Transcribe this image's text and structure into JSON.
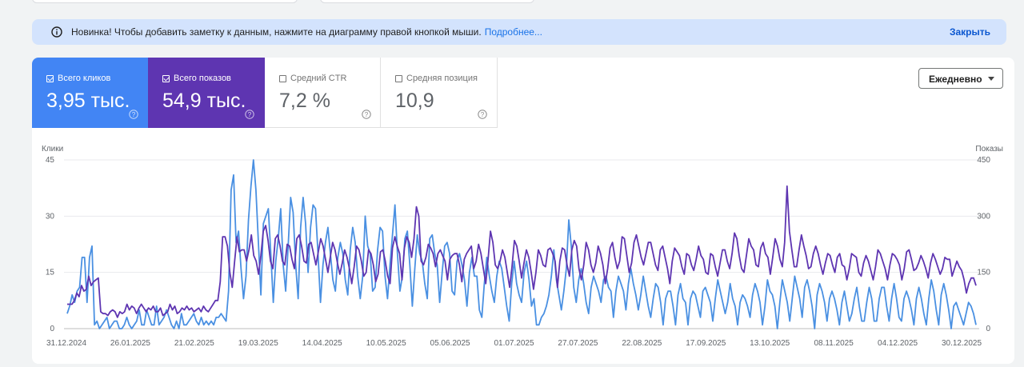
{
  "notice": {
    "text": "Новинка! Чтобы добавить заметку к данным, нажмите на диаграмму правой кнопкой мыши.",
    "link": "Подробнее...",
    "close": "Закрыть"
  },
  "metrics": [
    {
      "label": "Всего кликов",
      "value": "3,95 тыс.",
      "checked": true,
      "color": "#4285f4"
    },
    {
      "label": "Всего показов",
      "value": "54,9 тыс.",
      "checked": true,
      "color": "#5e35b1"
    },
    {
      "label": "Средний CTR",
      "value": "7,2 %",
      "checked": false,
      "color": "#ffffff"
    },
    {
      "label": "Средняя позиция",
      "value": "10,9",
      "checked": false,
      "color": "#ffffff"
    }
  ],
  "range_select": {
    "value": "Ежедневно"
  },
  "chart_data": {
    "type": "line",
    "left_axis": {
      "label": "Клики",
      "ticks": [
        0,
        15,
        30,
        45
      ],
      "range": [
        0,
        45
      ]
    },
    "right_axis": {
      "label": "Показы",
      "ticks": [
        0,
        150,
        300,
        450
      ],
      "range": [
        0,
        450
      ]
    },
    "x_ticks": [
      "31.12.2024",
      "26.01.2025",
      "21.02.2025",
      "19.03.2025",
      "14.04.2025",
      "10.05.2025",
      "05.06.2025",
      "01.07.2025",
      "27.07.2025",
      "22.08.2025",
      "17.09.2025",
      "13.10.2025",
      "08.11.2025",
      "04.12.2025",
      "30.12.2025"
    ],
    "x_start": "2024-12-31",
    "x_end": "2025-12-30",
    "grid": true,
    "series": [
      {
        "name": "Всего кликов",
        "axis": "left",
        "color": "#4a90e2",
        "values": [
          4,
          6,
          9,
          7,
          10,
          11,
          19,
          19,
          7,
          19,
          22,
          1,
          2,
          0,
          1,
          2,
          3,
          0,
          1,
          2,
          2,
          0,
          0,
          1,
          3,
          1,
          0,
          1,
          2,
          5,
          1,
          1,
          5,
          3,
          1,
          1,
          6,
          1,
          2,
          3,
          5,
          3,
          1,
          0,
          2,
          0,
          4,
          1,
          1,
          2,
          3,
          4,
          2,
          1,
          3,
          1,
          2,
          1,
          2,
          1,
          3,
          3,
          4,
          3,
          2,
          10,
          37,
          41,
          23,
          26,
          16,
          8,
          14,
          29,
          38,
          45,
          37,
          23,
          9,
          28,
          30,
          32,
          20,
          7,
          18,
          24,
          32,
          17,
          10,
          22,
          35,
          31,
          17,
          8,
          27,
          35,
          28,
          15,
          27,
          33,
          32,
          20,
          7,
          17,
          23,
          27,
          20,
          13,
          10,
          19,
          23,
          20,
          13,
          9,
          21,
          27,
          23,
          14,
          8,
          14,
          30,
          22,
          20,
          10,
          11,
          21,
          27,
          26,
          14,
          8,
          17,
          25,
          33,
          20,
          10,
          14,
          24,
          26,
          17,
          6,
          16,
          25,
          20,
          18,
          12,
          8,
          24,
          25,
          20,
          17,
          7,
          15,
          22,
          23,
          20,
          10,
          9,
          18,
          20,
          17,
          13,
          6,
          15,
          19,
          14,
          14,
          5,
          3,
          12,
          19,
          14,
          10,
          7,
          14,
          18,
          16,
          11,
          6,
          2,
          12,
          18,
          12,
          9,
          7,
          15,
          18,
          13,
          6,
          8,
          1,
          1,
          3,
          4,
          6,
          9,
          14,
          21,
          13,
          9,
          5,
          10,
          16,
          29,
          22,
          11,
          7,
          13,
          16,
          12,
          7,
          4,
          11,
          14,
          12,
          10,
          7,
          13,
          14,
          11,
          10,
          3,
          10,
          14,
          12,
          10,
          5,
          12,
          16,
          12,
          9,
          5,
          9,
          14,
          10,
          6,
          3,
          8,
          12,
          11,
          7,
          1,
          8,
          10,
          10,
          6,
          1,
          9,
          12,
          8,
          7,
          1,
          8,
          10,
          9,
          6,
          3,
          10,
          11,
          9,
          7,
          2,
          8,
          13,
          10,
          7,
          4,
          7,
          12,
          8,
          6,
          1,
          7,
          9,
          8,
          6,
          3,
          9,
          12,
          10,
          7,
          1,
          6,
          13,
          10,
          9,
          6,
          0,
          7,
          13,
          10,
          7,
          2,
          8,
          14,
          11,
          8,
          3,
          11,
          13,
          10,
          6,
          0,
          9,
          12,
          10,
          7,
          2,
          8,
          10,
          8,
          5,
          1,
          7,
          10,
          6,
          2,
          4,
          8,
          11,
          6,
          2,
          2,
          7,
          11,
          8,
          2,
          2,
          8,
          11,
          11,
          6,
          2,
          8,
          12,
          8,
          3,
          2,
          8,
          10,
          8,
          5,
          1,
          8,
          11,
          8,
          4,
          1,
          8,
          13,
          10,
          5,
          1,
          9,
          12,
          9,
          5,
          0,
          6,
          7,
          5,
          3,
          1,
          4,
          7,
          6,
          4,
          1
        ]
      },
      {
        "name": "Всего показов",
        "axis": "right",
        "color": "#5e35b1",
        "values": [
          65,
          65,
          65,
          75,
          95,
          85,
          115,
          100,
          105,
          140,
          115,
          125,
          130,
          135,
          45,
          40,
          40,
          35,
          45,
          50,
          45,
          30,
          45,
          40,
          45,
          65,
          50,
          60,
          55,
          40,
          55,
          65,
          55,
          45,
          55,
          50,
          60,
          45,
          45,
          55,
          35,
          40,
          45,
          65,
          50,
          60,
          40,
          45,
          55,
          50,
          60,
          50,
          55,
          45,
          50,
          55,
          45,
          60,
          50,
          45,
          55,
          65,
          75,
          75,
          125,
          245,
          245,
          220,
          150,
          110,
          180,
          245,
          205,
          210,
          210,
          180,
          210,
          250,
          195,
          180,
          145,
          195,
          260,
          275,
          235,
          180,
          160,
          240,
          250,
          220,
          180,
          170,
          225,
          220,
          185,
          160,
          240,
          250,
          220,
          180,
          175,
          225,
          230,
          200,
          170,
          205,
          240,
          220,
          185,
          150,
          190,
          230,
          210,
          175,
          145,
          175,
          210,
          190,
          160,
          120,
          165,
          220,
          210,
          180,
          140,
          150,
          210,
          200,
          170,
          125,
          145,
          205,
          210,
          180,
          140,
          120,
          215,
          245,
          220,
          200,
          130,
          215,
          245,
          230,
          190,
          240,
          325,
          300,
          180,
          170,
          190,
          225,
          215,
          200,
          165,
          200,
          210,
          195,
          180,
          130,
          185,
          195,
          200,
          200,
          170,
          125,
          185,
          200,
          210,
          220,
          160,
          180,
          225,
          200,
          160,
          120,
          185,
          260,
          230,
          170,
          160,
          180,
          210,
          190,
          150,
          110,
          165,
          235,
          220,
          180,
          135,
          175,
          210,
          190,
          150,
          105,
          150,
          210,
          195,
          170,
          165,
          210,
          215,
          200,
          180,
          110,
          180,
          215,
          210,
          170,
          140,
          210,
          235,
          220,
          160,
          130,
          170,
          230,
          210,
          170,
          150,
          175,
          220,
          200,
          170,
          120,
          160,
          215,
          230,
          190,
          160,
          180,
          245,
          240,
          195,
          150,
          175,
          230,
          250,
          220,
          190,
          170,
          200,
          230,
          230,
          200,
          170,
          155,
          210,
          220,
          190,
          160,
          120,
          180,
          215,
          205,
          195,
          165,
          145,
          200,
          195,
          170,
          155,
          185,
          220,
          195,
          185,
          150,
          145,
          200,
          195,
          165,
          140,
          175,
          210,
          210,
          180,
          160,
          200,
          255,
          240,
          195,
          160,
          150,
          195,
          240,
          220,
          210,
          170,
          165,
          215,
          230,
          200,
          190,
          145,
          190,
          240,
          220,
          185,
          165,
          230,
          380,
          260,
          210,
          165,
          165,
          210,
          250,
          220,
          195,
          160,
          165,
          200,
          220,
          200,
          170,
          145,
          175,
          200,
          195,
          170,
          150,
          190,
          200,
          170,
          165,
          130,
          160,
          200,
          195,
          190,
          150,
          140,
          175,
          195,
          180,
          155,
          130,
          165,
          210,
          200,
          180,
          160,
          130,
          170,
          200,
          195,
          185,
          170,
          130,
          160,
          205,
          210,
          185,
          155,
          160,
          175,
          195,
          180,
          160,
          135,
          175,
          200,
          185,
          165,
          145,
          160,
          190,
          185,
          185,
          140,
          160,
          180,
          165,
          155,
          130,
          95,
          120,
          135,
          135,
          115
        ]
      }
    ]
  }
}
